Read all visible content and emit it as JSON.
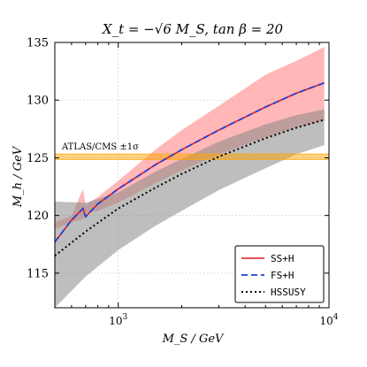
{
  "chart_data": {
    "type": "line",
    "title": "X_t = −√6 M_S, tan β = 20",
    "xlabel": "M_S / GeV",
    "ylabel": "M_h / GeV",
    "xscale": "log",
    "xlim": [
      500,
      10000
    ],
    "ylim": [
      112,
      135
    ],
    "grid": true,
    "x_ticks": [
      {
        "value": 1000,
        "label": "10^3"
      },
      {
        "value": 10000,
        "label": "10^4"
      }
    ],
    "y_ticks": [
      115,
      120,
      125,
      130,
      135
    ],
    "legend_position": "bottom-right",
    "series": [
      {
        "name": "SS+H",
        "color": "#e41a1c",
        "style": "solid",
        "x": [
          500,
          600,
          680,
          700,
          800,
          1000,
          1500,
          2000,
          3000,
          5000,
          7000,
          9500
        ],
        "y": [
          117.7,
          119.6,
          120.6,
          119.9,
          121.0,
          122.3,
          124.4,
          125.7,
          127.4,
          129.4,
          130.6,
          131.5
        ]
      },
      {
        "name": "FS+H",
        "color": "#1f3fd6",
        "style": "dashed",
        "x": [
          500,
          600,
          680,
          700,
          800,
          1000,
          1500,
          2000,
          3000,
          5000,
          7000,
          9500
        ],
        "y": [
          117.7,
          119.6,
          120.6,
          119.9,
          121.0,
          122.3,
          124.4,
          125.7,
          127.4,
          129.4,
          130.6,
          131.5
        ]
      },
      {
        "name": "HSSUSY",
        "color": "#000000",
        "style": "dotted",
        "x": [
          500,
          700,
          1000,
          1500,
          2000,
          3000,
          5000,
          7000,
          9500
        ],
        "y": [
          116.5,
          118.6,
          120.6,
          122.4,
          123.6,
          125.1,
          126.7,
          127.6,
          128.3
        ]
      }
    ],
    "bands": [
      {
        "series": "SS+H",
        "color": "#ff9999",
        "opacity": 0.7,
        "x": [
          500,
          600,
          680,
          700,
          800,
          1000,
          1500,
          2000,
          3000,
          5000,
          7000,
          9500
        ],
        "lower": [
          118.8,
          119.4,
          119.7,
          120.2,
          120.4,
          121.1,
          122.8,
          123.9,
          125.3,
          126.8,
          127.6,
          128.2
        ],
        "upper": [
          119.4,
          120.0,
          122.3,
          120.9,
          121.6,
          123.0,
          125.7,
          127.4,
          129.5,
          132.2,
          133.4,
          134.6
        ]
      },
      {
        "series": "HSSUSY",
        "color": "#888888",
        "opacity": 0.55,
        "x": [
          500,
          700,
          1000,
          1500,
          2000,
          3000,
          5000,
          7000,
          9500
        ],
        "lower": [
          112.0,
          114.7,
          117.0,
          119.1,
          120.4,
          122.2,
          124.1,
          125.3,
          126.1
        ],
        "upper": [
          121.2,
          121.1,
          122.0,
          123.8,
          124.9,
          126.4,
          127.9,
          128.7,
          129.2
        ]
      }
    ],
    "hband": {
      "label": "ATLAS/CMS ±1σ",
      "center": 125.09,
      "half_width": 0.24,
      "color": "#ffa500"
    }
  }
}
